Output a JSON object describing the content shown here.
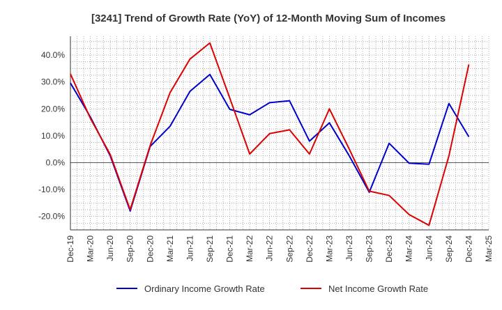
{
  "chart_data": {
    "type": "line",
    "title": "[3241]  Trend of Growth Rate (YoY) of 12-Month Moving Sum of Incomes",
    "xlabel": "",
    "ylabel": "",
    "x_tick_labels": [
      "Dec-19",
      "Mar-20",
      "Jun-20",
      "Sep-20",
      "Dec-20",
      "Mar-21",
      "Jun-21",
      "Sep-21",
      "Dec-21",
      "Mar-22",
      "Jun-22",
      "Sep-22",
      "Dec-22",
      "Mar-23",
      "Jun-23",
      "Sep-23",
      "Dec-23",
      "Mar-24",
      "Jun-24",
      "Sep-24",
      "Dec-24",
      "Mar-25"
    ],
    "y_tick_values": [
      -20,
      -10,
      0,
      10,
      20,
      30,
      40
    ],
    "y_tick_labels": [
      "-20.0%",
      "-10.0%",
      "0.0%",
      "10.0%",
      "20.0%",
      "30.0%",
      "40.0%"
    ],
    "ylim": [
      -25,
      47
    ],
    "grid": true,
    "legend_position": "bottom",
    "series": [
      {
        "name": "Ordinary Income Growth Rate",
        "color": "#0000cc",
        "x_index_start": 0,
        "values": [
          29.6,
          17.0,
          2.5,
          -18.0,
          6.0,
          13.5,
          26.5,
          32.8,
          19.8,
          17.8,
          22.3,
          23.0,
          8.0,
          14.8,
          2.5,
          -11.0,
          7.2,
          -0.2,
          -0.6,
          22.0,
          9.6
        ]
      },
      {
        "name": "Net Income Growth Rate",
        "color": "#dd0000",
        "x_index_start": 0,
        "values": [
          33.0,
          16.5,
          3.0,
          -17.5,
          6.3,
          26.0,
          38.5,
          44.5,
          24.0,
          3.2,
          10.8,
          12.2,
          3.2,
          20.0,
          5.0,
          -10.6,
          -12.2,
          -19.3,
          -23.3,
          2.5,
          36.5
        ]
      }
    ]
  }
}
